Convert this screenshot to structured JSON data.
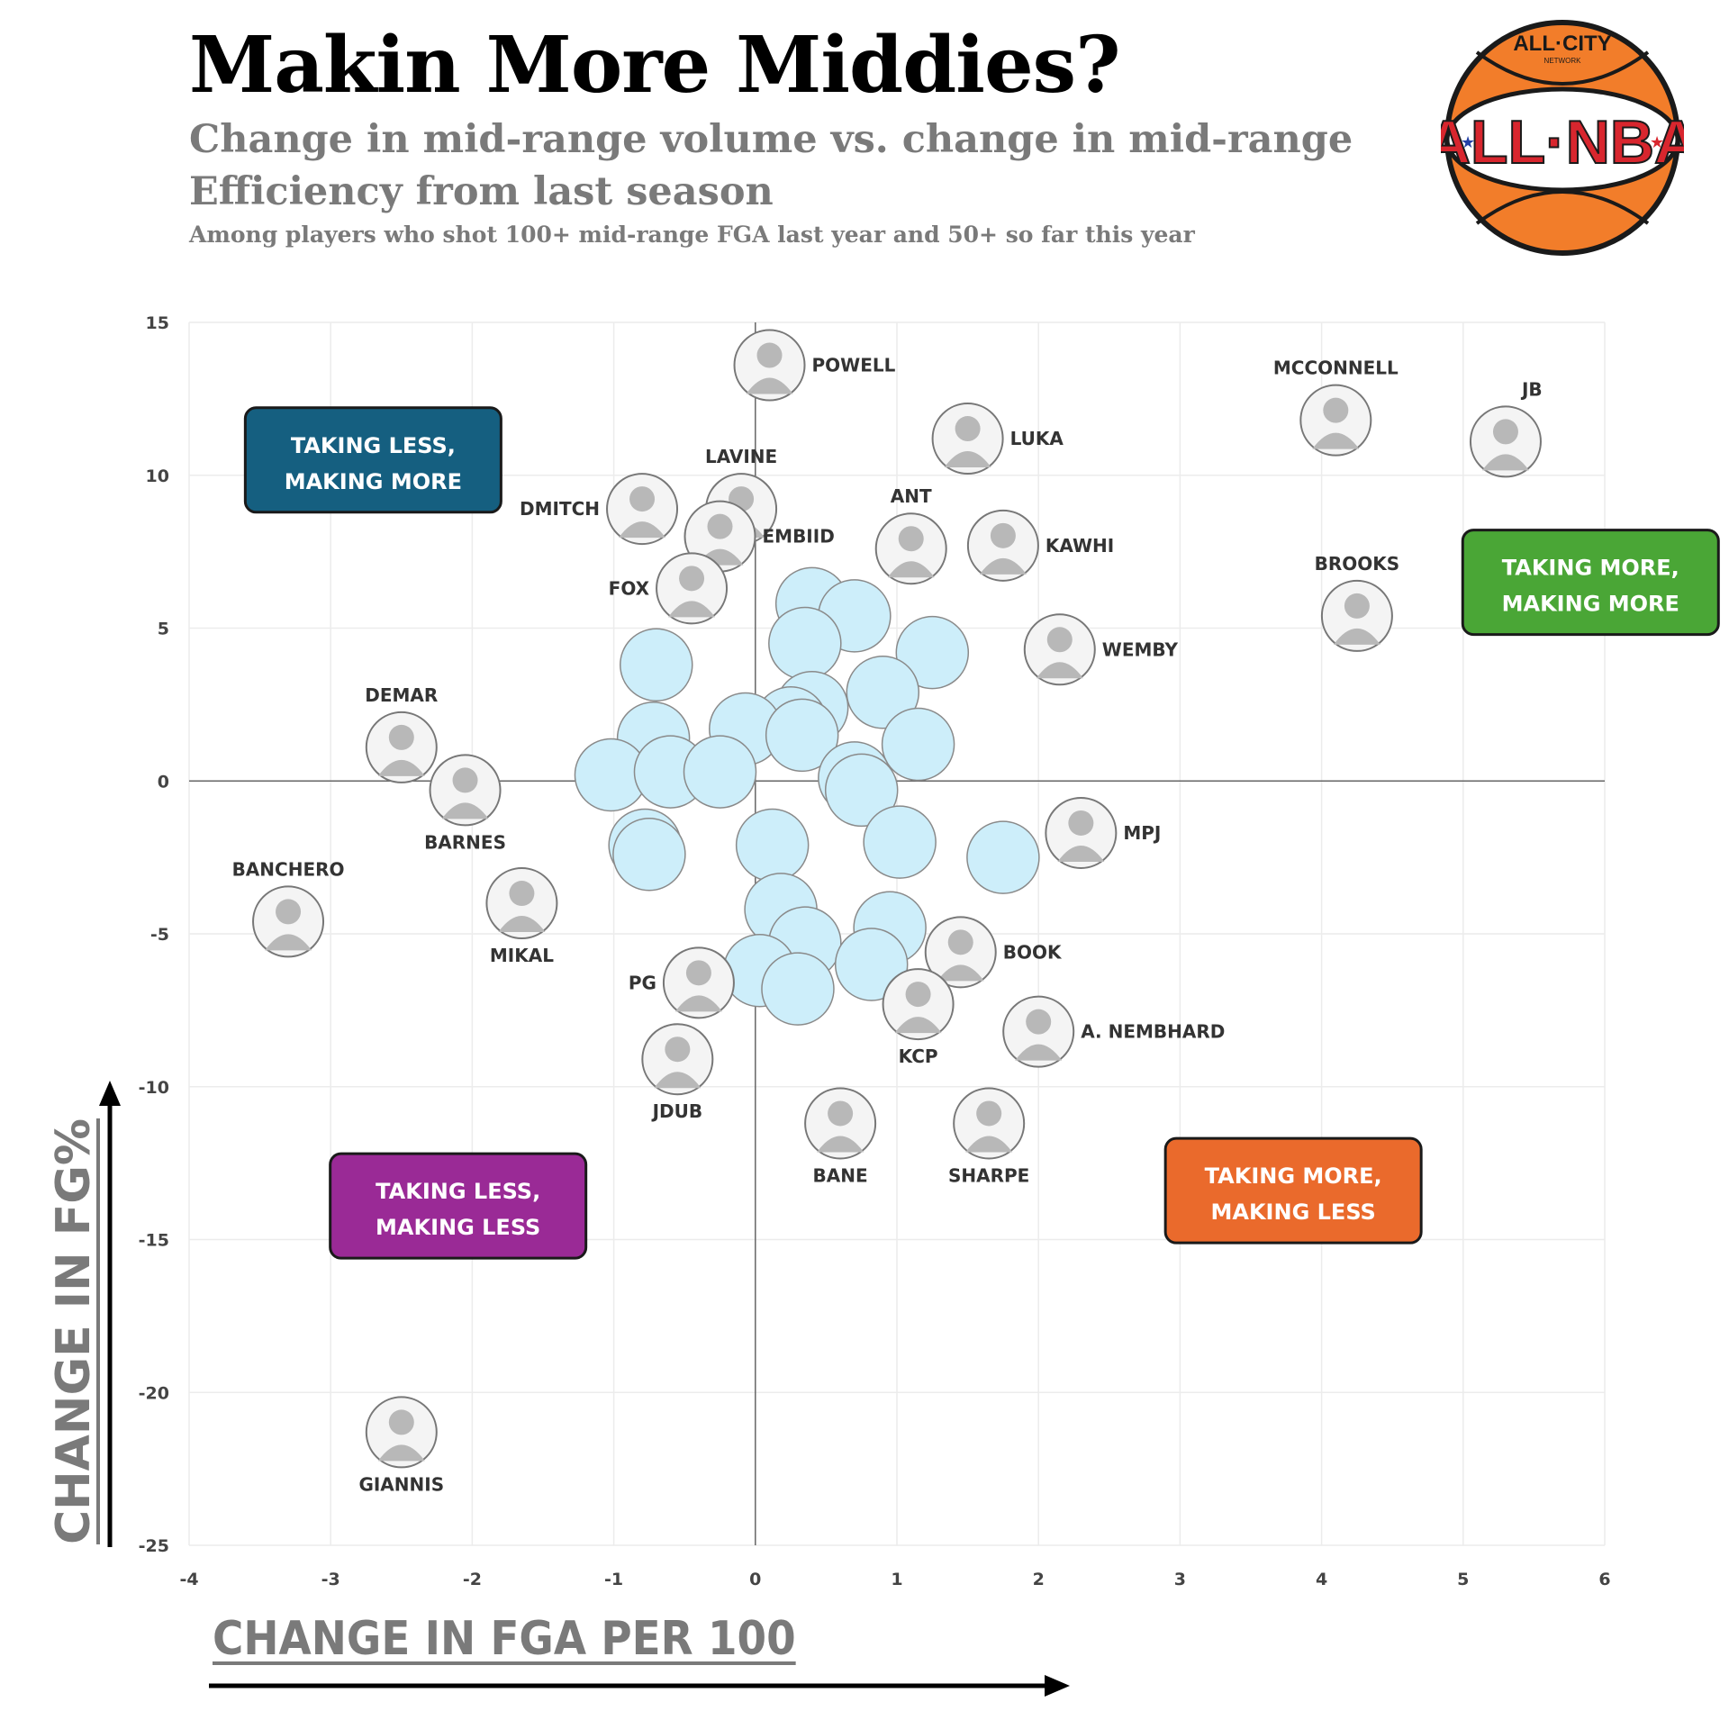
{
  "title": "Makin More Middies?",
  "subtitle": "Change in mid-range volume vs. change in mid-range Efficiency from last season",
  "note": "Among players who shot 100+ mid-range FGA last year and 50+ so far this year",
  "logo": {
    "top_text": "ALL·CITY",
    "small_text": "NETWORK",
    "main_text": "ALL·NBA"
  },
  "colors": {
    "bubble_fill": "#cdeefa",
    "bubble_stroke": "#8a8a8a",
    "q_taking_less_making_more": "#155f80",
    "q_taking_more_making_more": "#4aa636",
    "q_taking_less_making_less": "#9a2a96",
    "q_taking_more_making_less": "#ea6a2c",
    "logo_orange": "#f27d2a",
    "logo_red": "#d8262e",
    "logo_blue": "#2340a6"
  },
  "chart_data": {
    "type": "scatter",
    "title": "Makin More Middies?",
    "xlabel": "CHANGE IN FGA PER 100",
    "ylabel": "CHANGE IN FG%",
    "xlim": [
      -4,
      6
    ],
    "ylim": [
      -25,
      15
    ],
    "xticks": [
      -4,
      -3,
      -2,
      -1,
      0,
      1,
      2,
      3,
      4,
      5,
      6
    ],
    "yticks": [
      15,
      10,
      5,
      0,
      -5,
      -10,
      -15,
      -20,
      -25
    ],
    "grid": true,
    "quadrant_labels": [
      {
        "text_line1": "TAKING LESS,",
        "text_line2": "MAKING MORE",
        "x": -2.7,
        "y": 10.5,
        "color": "q_taking_less_making_more"
      },
      {
        "text_line1": "TAKING MORE,",
        "text_line2": "MAKING MORE",
        "x": 5.9,
        "y": 6.5,
        "color": "q_taking_more_making_more"
      },
      {
        "text_line1": "TAKING LESS,",
        "text_line2": "MAKING LESS",
        "x": -2.1,
        "y": -13.9,
        "color": "q_taking_less_making_less"
      },
      {
        "text_line1": "TAKING MORE,",
        "text_line2": "MAKING LESS",
        "x": 3.8,
        "y": -13.4,
        "color": "q_taking_more_making_less"
      }
    ],
    "labeled_players": [
      {
        "label": "POWELL",
        "x": 0.1,
        "y": 13.6,
        "label_pos": "right"
      },
      {
        "label": "MCCONNELL",
        "x": 4.1,
        "y": 11.8,
        "label_pos": "above"
      },
      {
        "label": "JB",
        "x": 5.3,
        "y": 11.1,
        "label_pos": "above-right"
      },
      {
        "label": "LUKA",
        "x": 1.5,
        "y": 11.2,
        "label_pos": "right"
      },
      {
        "label": "LAVINE",
        "x": -0.1,
        "y": 8.9,
        "label_pos": "above"
      },
      {
        "label": "DMITCH",
        "x": -0.8,
        "y": 8.9,
        "label_pos": "left"
      },
      {
        "label": "EMBIID",
        "x": -0.25,
        "y": 8.0,
        "label_pos": "right"
      },
      {
        "label": "ANT",
        "x": 1.1,
        "y": 7.6,
        "label_pos": "above"
      },
      {
        "label": "KAWHI",
        "x": 1.75,
        "y": 7.7,
        "label_pos": "right"
      },
      {
        "label": "FOX",
        "x": -0.45,
        "y": 6.3,
        "label_pos": "left"
      },
      {
        "label": "BROOKS",
        "x": 4.25,
        "y": 5.4,
        "label_pos": "above"
      },
      {
        "label": "WEMBY",
        "x": 2.15,
        "y": 4.3,
        "label_pos": "right"
      },
      {
        "label": "DEMAR",
        "x": -2.5,
        "y": 1.1,
        "label_pos": "above"
      },
      {
        "label": "BARNES",
        "x": -2.05,
        "y": -0.3,
        "label_pos": "below"
      },
      {
        "label": "MPJ",
        "x": 2.3,
        "y": -1.7,
        "label_pos": "right"
      },
      {
        "label": "BANCHERO",
        "x": -3.3,
        "y": -4.6,
        "label_pos": "above"
      },
      {
        "label": "MIKAL",
        "x": -1.65,
        "y": -4.0,
        "label_pos": "below"
      },
      {
        "label": "BOOK",
        "x": 1.45,
        "y": -5.6,
        "label_pos": "right"
      },
      {
        "label": "PG",
        "x": -0.4,
        "y": -6.6,
        "label_pos": "left"
      },
      {
        "label": "KCP",
        "x": 1.15,
        "y": -7.3,
        "label_pos": "below"
      },
      {
        "label": "A. NEMBHARD",
        "x": 2.0,
        "y": -8.2,
        "label_pos": "right"
      },
      {
        "label": "JDUB",
        "x": -0.55,
        "y": -9.1,
        "label_pos": "below"
      },
      {
        "label": "BANE",
        "x": 0.6,
        "y": -11.2,
        "label_pos": "below"
      },
      {
        "label": "SHARPE",
        "x": 1.65,
        "y": -11.2,
        "label_pos": "below"
      },
      {
        "label": "GIANNIS",
        "x": -2.5,
        "y": -21.3,
        "label_pos": "below"
      }
    ],
    "unlabeled_points": [
      {
        "x": 0.4,
        "y": 5.8
      },
      {
        "x": 0.7,
        "y": 5.4
      },
      {
        "x": 0.35,
        "y": 4.5
      },
      {
        "x": -0.7,
        "y": 3.8
      },
      {
        "x": 1.25,
        "y": 4.2
      },
      {
        "x": 0.9,
        "y": 2.9
      },
      {
        "x": 0.4,
        "y": 2.4
      },
      {
        "x": 0.25,
        "y": 1.9
      },
      {
        "x": -0.07,
        "y": 1.7
      },
      {
        "x": -0.72,
        "y": 1.4
      },
      {
        "x": 0.33,
        "y": 1.5
      },
      {
        "x": 1.15,
        "y": 1.2
      },
      {
        "x": -1.02,
        "y": 0.2
      },
      {
        "x": -0.6,
        "y": 0.3
      },
      {
        "x": -0.25,
        "y": 0.3
      },
      {
        "x": 0.7,
        "y": 0.1
      },
      {
        "x": 0.75,
        "y": -0.3
      },
      {
        "x": -0.78,
        "y": -2.1
      },
      {
        "x": -0.75,
        "y": -2.4
      },
      {
        "x": 0.12,
        "y": -2.1
      },
      {
        "x": 1.02,
        "y": -2.0
      },
      {
        "x": 1.75,
        "y": -2.5
      },
      {
        "x": 0.18,
        "y": -4.2
      },
      {
        "x": 0.95,
        "y": -4.8
      },
      {
        "x": 0.35,
        "y": -5.3
      },
      {
        "x": 0.82,
        "y": -6.0
      },
      {
        "x": 0.03,
        "y": -6.2
      },
      {
        "x": 0.3,
        "y": -6.8
      }
    ]
  }
}
